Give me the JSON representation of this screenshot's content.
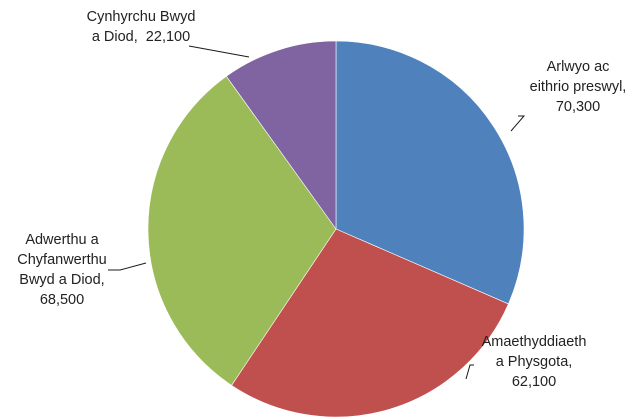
{
  "chart_data": {
    "type": "pie",
    "title": "",
    "slices": [
      {
        "label_lines": [
          "Arlwyo ac",
          "eithrio preswyl,",
          "70,300"
        ],
        "value": 70300,
        "color": "#4F81BD"
      },
      {
        "label_lines": [
          "Amaethyddiaeth",
          "a Physgota,",
          "62,100"
        ],
        "value": 62100,
        "color": "#C0504D"
      },
      {
        "label_lines": [
          "Adwerthu a",
          "Chyfanwerthu",
          "Bwyd a Diod,",
          "68,500"
        ],
        "value": 68500,
        "color": "#9BBB59"
      },
      {
        "label_lines": [
          "Cynhyrchu Bwyd",
          "a Diod,  22,100"
        ],
        "value": 22100,
        "color": "#8064A2"
      }
    ]
  }
}
